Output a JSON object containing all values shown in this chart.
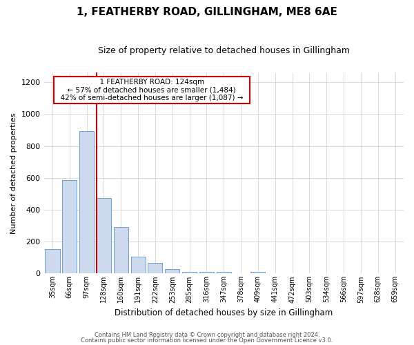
{
  "title": "1, FEATHERBY ROAD, GILLINGHAM, ME8 6AE",
  "subtitle": "Size of property relative to detached houses in Gillingham",
  "xlabel": "Distribution of detached houses by size in Gillingham",
  "ylabel": "Number of detached properties",
  "bar_labels": [
    "35sqm",
    "66sqm",
    "97sqm",
    "128sqm",
    "160sqm",
    "191sqm",
    "222sqm",
    "253sqm",
    "285sqm",
    "316sqm",
    "347sqm",
    "378sqm",
    "409sqm",
    "441sqm",
    "472sqm",
    "503sqm",
    "534sqm",
    "566sqm",
    "597sqm",
    "628sqm",
    "659sqm"
  ],
  "bar_values": [
    155,
    585,
    895,
    475,
    290,
    105,
    65,
    28,
    12,
    12,
    10,
    0,
    10,
    0,
    0,
    0,
    0,
    0,
    0,
    0,
    0
  ],
  "bar_color": "#cdd9ed",
  "bar_edge_color": "#6b9ed2",
  "vline_color": "#cc0000",
  "annotation_title": "1 FEATHERBY ROAD: 124sqm",
  "annotation_line1": "← 57% of detached houses are smaller (1,484)",
  "annotation_line2": "42% of semi-detached houses are larger (1,087) →",
  "annotation_box_facecolor": "#ffffff",
  "annotation_box_edgecolor": "#cc0000",
  "ylim": [
    0,
    1260
  ],
  "yticks": [
    0,
    200,
    400,
    600,
    800,
    1000,
    1200
  ],
  "footer1": "Contains HM Land Registry data © Crown copyright and database right 2024.",
  "footer2": "Contains public sector information licensed under the Open Government Licence v3.0.",
  "background_color": "#ffffff",
  "grid_color": "#cccccc",
  "title_fontsize": 11,
  "subtitle_fontsize": 9
}
